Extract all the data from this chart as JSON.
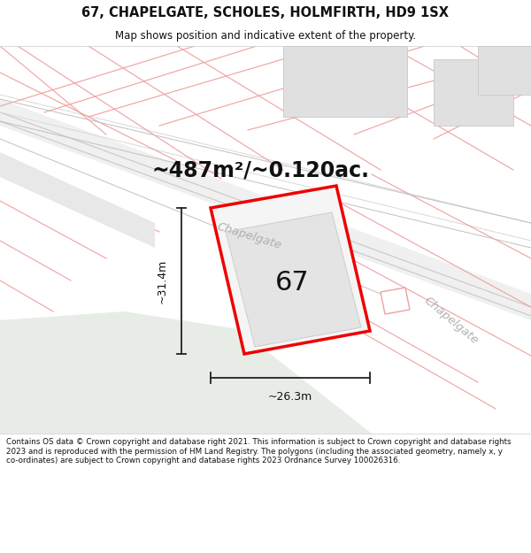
{
  "title_line1": "67, CHAPELGATE, SCHOLES, HOLMFIRTH, HD9 1SX",
  "title_line2": "Map shows position and indicative extent of the property.",
  "area_text": "~487m²/~0.120ac.",
  "label_67": "67",
  "dim_horizontal": "~26.3m",
  "dim_vertical": "~31.4m",
  "street_name_lower": "Chapelgate",
  "street_name_upper": "Chapelgate",
  "footer_text": "Contains OS data © Crown copyright and database right 2021. This information is subject to Crown copyright and database rights 2023 and is reproduced with the permission of HM Land Registry. The polygons (including the associated geometry, namely x, y co-ordinates) are subject to Crown copyright and database rights 2023 Ordnance Survey 100026316.",
  "map_bg": "#ffffff",
  "red_color": "#ee0000",
  "pink_color": "#f0a0a0",
  "pink_light": "#f8c8c8",
  "road_line": "#c8c8c8",
  "parcel_fill": "#e8e8e8",
  "parcel_edge": "#c0c0c0",
  "green_fill": "#e8ece6",
  "text_dark": "#111111",
  "text_gray": "#b0b0b0",
  "white": "#ffffff",
  "dim_line_color": "#222222"
}
